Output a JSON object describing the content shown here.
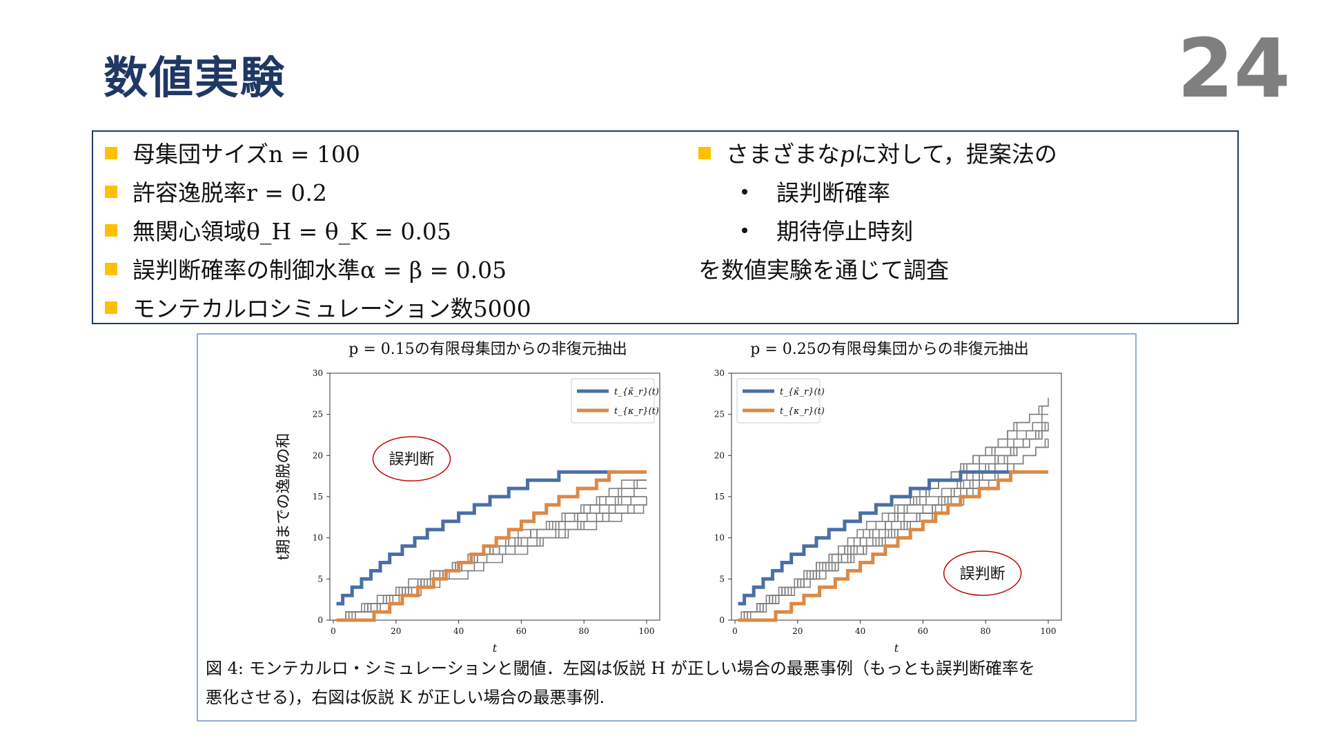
{
  "slide": {
    "title": "数値実験",
    "page_number": "24"
  },
  "conditions": {
    "left": [
      {
        "text": "母集団サイズ",
        "math": "n = 100"
      },
      {
        "text": "許容逸脱率",
        "math": "r = 0.2"
      },
      {
        "text": "無関心領域",
        "math": "θ_H = θ_K = 0.05"
      },
      {
        "text": "誤判断確率の制御水準",
        "math": "α = β = 0.05"
      },
      {
        "text": "モンテカルロシミュレーション数",
        "math": "5000"
      }
    ],
    "right_lead_pre": "さまざまな",
    "right_lead_math": "p",
    "right_lead_post": "に対して，提案法の",
    "right_items": [
      "誤判断確率",
      "期待停止時刻"
    ],
    "right_tail": "を数値実験を通じて調査"
  },
  "figure": {
    "caption_line1": "図 4: モンテカルロ・シミュレーションと閾値．左図は仮説 H が正しい場合の最悪事例（もっとも誤判断確率を",
    "caption_line2": "悪化させる)，右図は仮説 K が正しい場合の最悪事例.",
    "ylabel": "t期までの逸脱の和"
  },
  "colors": {
    "title": "#1f3864",
    "bullet": "#ffc000",
    "upper_threshold": "#4a6fa5",
    "lower_threshold": "#dd8844",
    "sim_paths": "#808080",
    "annotation_ellipse": "#c00000"
  },
  "chart_data": [
    {
      "type": "line",
      "title": "p = 0.15の有限母集団からの非復元抽出",
      "xlabel": "t",
      "ylabel": "t期までの逸脱の和",
      "xlim": [
        0,
        100
      ],
      "ylim": [
        0,
        30
      ],
      "xticks": [
        "0",
        "20",
        "40",
        "60",
        "80",
        "100"
      ],
      "yticks": [
        "0",
        "5",
        "10",
        "15",
        "20",
        "25",
        "30"
      ],
      "legend_position": "top-right",
      "annotation": "誤判断",
      "series": [
        {
          "name": "t_{κ̄_r}(t)",
          "color": "#4a6fa5",
          "points": [
            [
              1,
              2
            ],
            [
              3,
              3
            ],
            [
              6,
              4
            ],
            [
              9,
              5
            ],
            [
              12,
              6
            ],
            [
              15,
              7
            ],
            [
              18,
              8
            ],
            [
              22,
              9
            ],
            [
              26,
              10
            ],
            [
              30,
              11
            ],
            [
              35,
              12
            ],
            [
              40,
              13
            ],
            [
              45,
              14
            ],
            [
              50,
              15
            ],
            [
              56,
              16
            ],
            [
              62,
              17
            ],
            [
              72,
              18
            ],
            [
              90,
              18
            ]
          ]
        },
        {
          "name": "t_{κ_r}(t)",
          "color": "#dd8844",
          "points": [
            [
              1,
              0
            ],
            [
              13,
              1
            ],
            [
              18,
              2
            ],
            [
              22,
              3
            ],
            [
              27,
              4
            ],
            [
              32,
              5
            ],
            [
              36,
              6
            ],
            [
              40,
              7
            ],
            [
              44,
              8
            ],
            [
              48,
              9
            ],
            [
              52,
              10
            ],
            [
              56,
              11
            ],
            [
              60,
              12
            ],
            [
              64,
              13
            ],
            [
              68,
              14
            ],
            [
              72,
              15
            ],
            [
              78,
              16
            ],
            [
              84,
              17
            ],
            [
              88,
              18
            ],
            [
              100,
              18
            ]
          ]
        }
      ],
      "simulation_paths": {
        "count": 10,
        "p": 0.15,
        "final_range": [
          15,
          17
        ]
      }
    },
    {
      "type": "line",
      "title": "p = 0.25の有限母集団からの非復元抽出",
      "xlabel": "t",
      "ylabel": "",
      "xlim": [
        0,
        100
      ],
      "ylim": [
        0,
        30
      ],
      "xticks": [
        "0",
        "20",
        "40",
        "60",
        "80",
        "100"
      ],
      "yticks": [
        "0",
        "5",
        "10",
        "15",
        "20",
        "25",
        "30"
      ],
      "legend_position": "top-left",
      "annotation": "誤判断",
      "series": [
        {
          "name": "t_{κ̄_r}(t)",
          "color": "#4a6fa5",
          "points": [
            [
              1,
              2
            ],
            [
              3,
              3
            ],
            [
              6,
              4
            ],
            [
              9,
              5
            ],
            [
              12,
              6
            ],
            [
              15,
              7
            ],
            [
              18,
              8
            ],
            [
              22,
              9
            ],
            [
              26,
              10
            ],
            [
              30,
              11
            ],
            [
              35,
              12
            ],
            [
              40,
              13
            ],
            [
              45,
              14
            ],
            [
              50,
              15
            ],
            [
              56,
              16
            ],
            [
              62,
              17
            ],
            [
              72,
              18
            ],
            [
              90,
              18
            ]
          ]
        },
        {
          "name": "t_{κ_r}(t)",
          "color": "#dd8844",
          "points": [
            [
              1,
              0
            ],
            [
              13,
              1
            ],
            [
              18,
              2
            ],
            [
              22,
              3
            ],
            [
              27,
              4
            ],
            [
              32,
              5
            ],
            [
              36,
              6
            ],
            [
              40,
              7
            ],
            [
              44,
              8
            ],
            [
              48,
              9
            ],
            [
              52,
              10
            ],
            [
              56,
              11
            ],
            [
              60,
              12
            ],
            [
              64,
              13
            ],
            [
              68,
              14
            ],
            [
              72,
              15
            ],
            [
              78,
              16
            ],
            [
              84,
              17
            ],
            [
              88,
              18
            ],
            [
              100,
              18
            ]
          ]
        }
      ],
      "simulation_paths": {
        "count": 12,
        "p": 0.25,
        "final_range": [
          22,
          26
        ]
      }
    }
  ]
}
